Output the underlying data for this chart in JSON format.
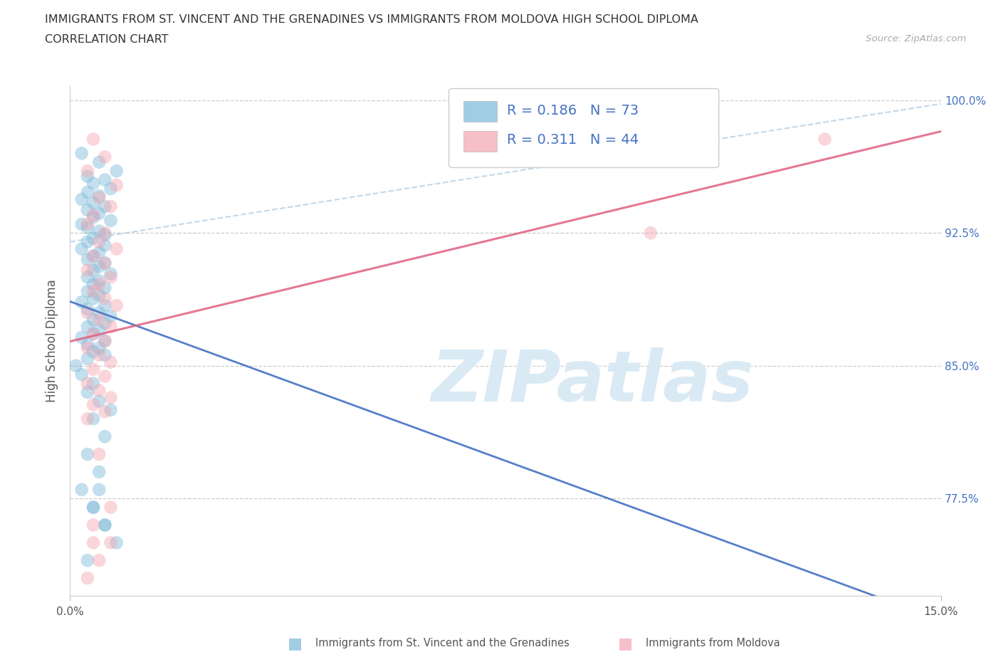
{
  "title_line1": "IMMIGRANTS FROM ST. VINCENT AND THE GRENADINES VS IMMIGRANTS FROM MOLDOVA HIGH SCHOOL DIPLOMA",
  "title_line2": "CORRELATION CHART",
  "source_text": "Source: ZipAtlas.com",
  "ylabel": "High School Diploma",
  "xlim": [
    0.0,
    0.15
  ],
  "ylim": [
    0.72,
    1.008
  ],
  "ytick_values": [
    0.775,
    0.85,
    0.925,
    1.0
  ],
  "ytick_labels": [
    "77.5%",
    "85.0%",
    "92.5%",
    "100.0%"
  ],
  "xtick_values": [
    0.0,
    0.15
  ],
  "xtick_labels": [
    "0.0%",
    "15.0%"
  ],
  "R_blue": 0.186,
  "N_blue": 73,
  "R_pink": 0.311,
  "N_pink": 44,
  "legend_label_blue": "Immigrants from St. Vincent and the Grenadines",
  "legend_label_pink": "Immigrants from Moldova",
  "blue_color": "#7ab8d9",
  "pink_color": "#f4a4b0",
  "trend_blue_color": "#4472c4",
  "trend_blue_dash_color": "#a0c4e0",
  "trend_pink_color": "#e06080",
  "legend_text_color": "#4472c4",
  "watermark_color": "#daeaf5",
  "watermark_text": "ZIPatlas",
  "blue_x": [
    0.002,
    0.005,
    0.008,
    0.003,
    0.006,
    0.004,
    0.007,
    0.003,
    0.005,
    0.002,
    0.004,
    0.006,
    0.003,
    0.005,
    0.004,
    0.007,
    0.002,
    0.003,
    0.005,
    0.006,
    0.004,
    0.003,
    0.006,
    0.002,
    0.005,
    0.004,
    0.003,
    0.006,
    0.005,
    0.004,
    0.007,
    0.003,
    0.005,
    0.004,
    0.006,
    0.003,
    0.005,
    0.004,
    0.002,
    0.006,
    0.003,
    0.005,
    0.007,
    0.004,
    0.006,
    0.003,
    0.005,
    0.004,
    0.002,
    0.006,
    0.003,
    0.005,
    0.004,
    0.006,
    0.003,
    0.001,
    0.002,
    0.004,
    0.003,
    0.005,
    0.007,
    0.004,
    0.006,
    0.003,
    0.005,
    0.002,
    0.004,
    0.006,
    0.008,
    0.003,
    0.005,
    0.004,
    0.006
  ],
  "blue_y": [
    0.97,
    0.965,
    0.96,
    0.957,
    0.955,
    0.953,
    0.95,
    0.948,
    0.946,
    0.944,
    0.942,
    0.94,
    0.938,
    0.936,
    0.934,
    0.932,
    0.93,
    0.928,
    0.926,
    0.924,
    0.922,
    0.92,
    0.918,
    0.916,
    0.914,
    0.912,
    0.91,
    0.908,
    0.906,
    0.904,
    0.902,
    0.9,
    0.898,
    0.896,
    0.894,
    0.892,
    0.89,
    0.888,
    0.886,
    0.884,
    0.882,
    0.88,
    0.878,
    0.876,
    0.874,
    0.872,
    0.87,
    0.868,
    0.866,
    0.864,
    0.862,
    0.86,
    0.858,
    0.856,
    0.854,
    0.85,
    0.845,
    0.84,
    0.835,
    0.83,
    0.825,
    0.82,
    0.81,
    0.8,
    0.79,
    0.78,
    0.77,
    0.76,
    0.75,
    0.74,
    0.78,
    0.77,
    0.76
  ],
  "pink_x": [
    0.004,
    0.006,
    0.003,
    0.008,
    0.005,
    0.007,
    0.004,
    0.003,
    0.006,
    0.005,
    0.008,
    0.004,
    0.006,
    0.003,
    0.007,
    0.005,
    0.004,
    0.006,
    0.008,
    0.003,
    0.005,
    0.007,
    0.004,
    0.006,
    0.003,
    0.13,
    0.005,
    0.007,
    0.004,
    0.006,
    0.003,
    0.005,
    0.007,
    0.004,
    0.006,
    0.003,
    0.005,
    0.007,
    0.004,
    0.1,
    0.003,
    0.005,
    0.007,
    0.004
  ],
  "pink_y": [
    0.978,
    0.968,
    0.96,
    0.952,
    0.945,
    0.94,
    0.935,
    0.93,
    0.925,
    0.92,
    0.916,
    0.912,
    0.908,
    0.904,
    0.9,
    0.896,
    0.892,
    0.888,
    0.884,
    0.88,
    0.876,
    0.872,
    0.868,
    0.864,
    0.86,
    0.978,
    0.856,
    0.852,
    0.848,
    0.844,
    0.84,
    0.836,
    0.832,
    0.828,
    0.824,
    0.82,
    0.8,
    0.77,
    0.75,
    0.925,
    0.73,
    0.74,
    0.75,
    0.76
  ]
}
